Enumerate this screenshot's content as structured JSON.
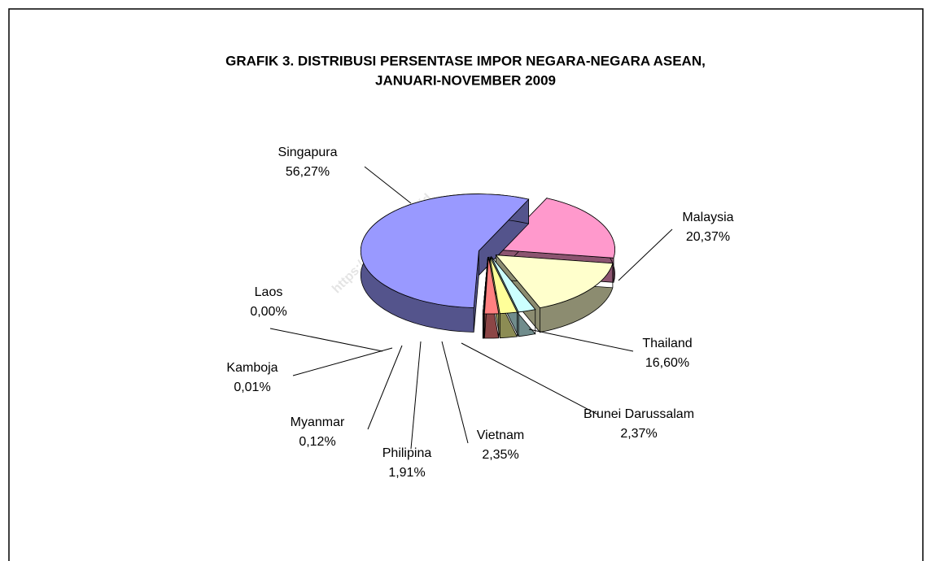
{
  "chart_data": {
    "type": "pie3d",
    "title": [
      "GRAFIK 3. DISTRIBUSI PERSENTASE IMPOR NEGARA-NEGARA ASEAN,",
      "JANUARI-NOVEMBER  2009"
    ],
    "watermark": "https://www.bps.go.id",
    "categories": [
      "Malaysia",
      "Thailand",
      "Brunei Darussalam",
      "Vietnam",
      "Philipina",
      "Myanmar",
      "Kamboja",
      "Laos",
      "Singapura"
    ],
    "values": [
      20.37,
      16.6,
      2.37,
      2.35,
      1.91,
      0.12,
      0.01,
      0.0,
      56.27
    ],
    "value_labels": [
      "20,37%",
      "16,60%",
      "2,37%",
      "2,35%",
      "1,91%",
      "0,12%",
      "0,01%",
      "0,00%",
      "56,27%"
    ],
    "colors": [
      "#ff99cc",
      "#ffffcc",
      "#ccffff",
      "#ffff99",
      "#ff8080",
      "#c0c0c0",
      "#808000",
      "#cc9900",
      "#9999ff"
    ]
  }
}
